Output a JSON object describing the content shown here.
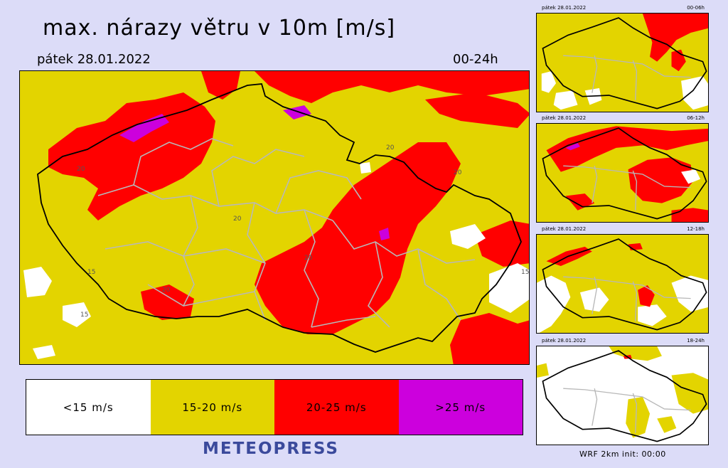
{
  "header": {
    "title": "max. nárazy větru v 10m [m/s]",
    "date": "pátek 28.01.2022",
    "period": "00-24h"
  },
  "legend": [
    {
      "label": "<15 m/s",
      "color": "#ffffff"
    },
    {
      "label": "15-20 m/s",
      "color": "#e3d400"
    },
    {
      "label": "20-25 m/s",
      "color": "#ff0000"
    },
    {
      "label": ">25 m/s",
      "color": "#cc00dd"
    }
  ],
  "contour_labels": [
    "20",
    "20",
    "20",
    "20",
    "15",
    "15",
    "15",
    "20",
    "20"
  ],
  "brand": "METEOPRESS",
  "thumbnails": [
    {
      "date": "pátek 28.01.2022",
      "period": "00-06h",
      "background": "#e3d400"
    },
    {
      "date": "pátek 28.01.2022",
      "period": "06-12h",
      "background": "#e3d400"
    },
    {
      "date": "pátek 28.01.2022",
      "period": "12-18h",
      "background": "#e3d400"
    },
    {
      "date": "pátek 28.01.2022",
      "period": "18-24h",
      "background": "#ffffff"
    }
  ],
  "footer": "WRF  2km  init: 00:00"
}
